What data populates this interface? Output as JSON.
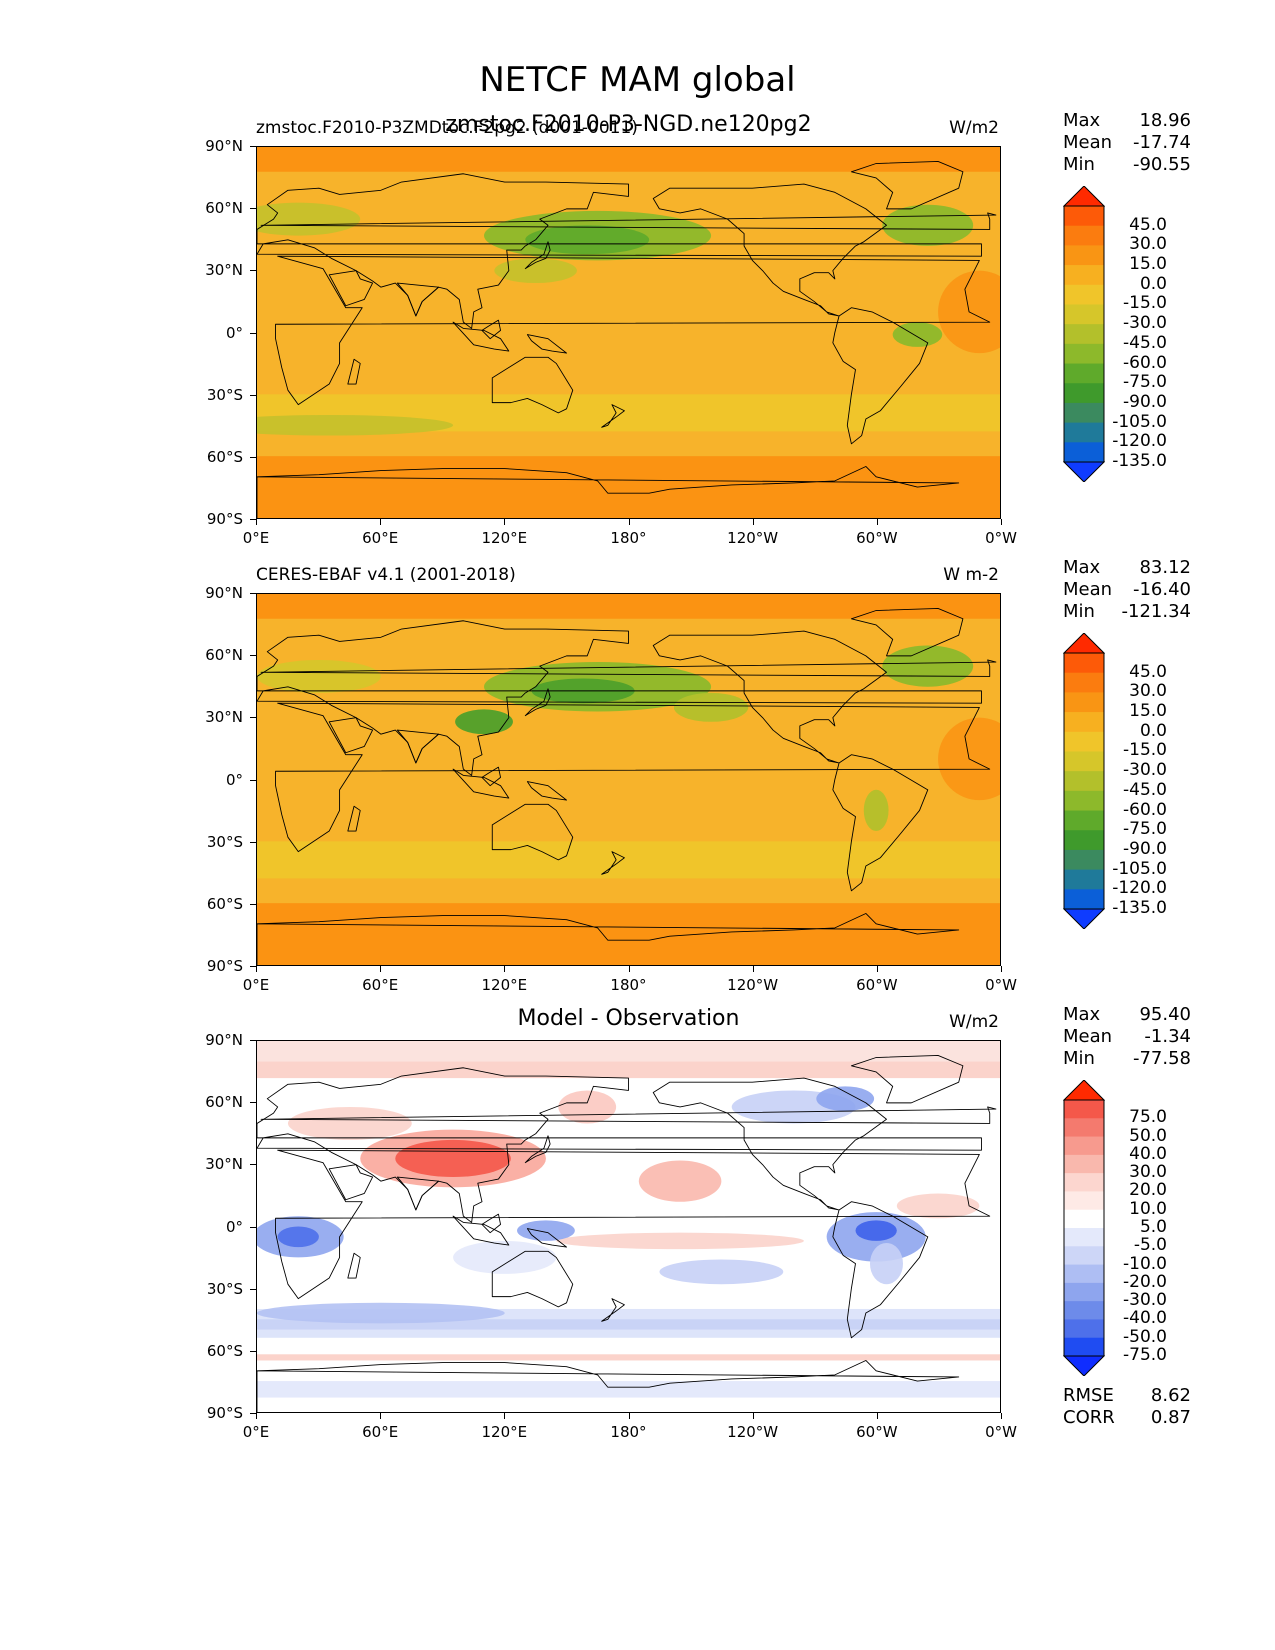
{
  "title": "NETCF MAM global",
  "panels": [
    {
      "left_title": "zmstoc.F2010-P3ZMDtoc.F2pg2 (d001-0011)",
      "center_title": "zmstoc.F2010-P3-NGD.ne120pg2",
      "units": "W/m2",
      "stats": {
        "max_label": "Max",
        "max": "18.96",
        "mean_label": "Mean",
        "mean": "-17.74",
        "min_label": "Min",
        "min": "-90.55"
      },
      "colorbar_levels": [
        "45.0",
        "30.0",
        "15.0",
        "0.0",
        "-15.0",
        "-30.0",
        "-45.0",
        "-60.0",
        "-75.0",
        "-90.0",
        "-105.0",
        "-120.0",
        "-135.0"
      ],
      "field": "model",
      "map_colors": {
        "base": "#f7b32b",
        "ocean_band": "#f0c52a",
        "polar": "#fb9312",
        "green": "#8db92b",
        "green_dark": "#5faa2b"
      }
    },
    {
      "left_title": "CERES-EBAF v4.1 (2001-2018)",
      "center_title": "",
      "units": "W m-2",
      "stats": {
        "max_label": "Max",
        "max": "83.12",
        "mean_label": "Mean",
        "mean": "-16.40",
        "min_label": "Min",
        "min": "-121.34"
      },
      "colorbar_levels": [
        "45.0",
        "30.0",
        "15.0",
        "0.0",
        "-15.0",
        "-30.0",
        "-45.0",
        "-60.0",
        "-75.0",
        "-90.0",
        "-105.0",
        "-120.0",
        "-135.0"
      ],
      "field": "obs",
      "map_colors": {
        "base": "#f7b32b",
        "ocean_band": "#f0c52a",
        "polar": "#fb9312",
        "green": "#8db92b",
        "green_dark": "#4fa02b"
      }
    },
    {
      "left_title": "",
      "center_title": "Model - Observation",
      "units": "W/m2",
      "stats": {
        "max_label": "Max",
        "max": "95.40",
        "mean_label": "Mean",
        "mean": "-1.34",
        "min_label": "Min",
        "min": "-77.58"
      },
      "colorbar_levels": [
        "75.0",
        "50.0",
        "40.0",
        "30.0",
        "20.0",
        "10.0",
        "5.0",
        "-5.0",
        "-10.0",
        "-20.0",
        "-30.0",
        "-40.0",
        "-50.0",
        "-75.0"
      ],
      "field": "diff",
      "rmse_label": "RMSE",
      "rmse": "8.62",
      "corr_label": "CORR",
      "corr": "0.87",
      "map_colors": {
        "base": "#ffffff",
        "red": "#f4584a",
        "pink": "#fbc8c0",
        "blue": "#7d95ee",
        "lightblue": "#d6def9"
      }
    }
  ],
  "lat_labels": [
    "90°N",
    "60°N",
    "30°N",
    "0°",
    "30°S",
    "60°S",
    "90°S"
  ],
  "lon_labels": [
    "0°E",
    "60°E",
    "120°E",
    "180°",
    "120°W",
    "60°W",
    "0°W"
  ],
  "colormaps": {
    "netcf": [
      "#ff2a00",
      "#fd5a08",
      "#fb7c0f",
      "#f99514",
      "#f7b020",
      "#f0c52a",
      "#d6c62a",
      "#b3c02b",
      "#8db92b",
      "#5faa2b",
      "#3f9a2c",
      "#3b8a5f",
      "#1f7a9a",
      "#0b5fd8",
      "#0f3cff"
    ],
    "diff": [
      "#ff2a00",
      "#f4584a",
      "#f47a6e",
      "#f79a8e",
      "#f9b8ad",
      "#fcd6cf",
      "#feeae6",
      "#ffffff",
      "#e4e9fb",
      "#cdd6f7",
      "#aebef3",
      "#8ea5ee",
      "#6d8bea",
      "#4e70ea",
      "#1f4cf2",
      "#0f2dff"
    ]
  }
}
